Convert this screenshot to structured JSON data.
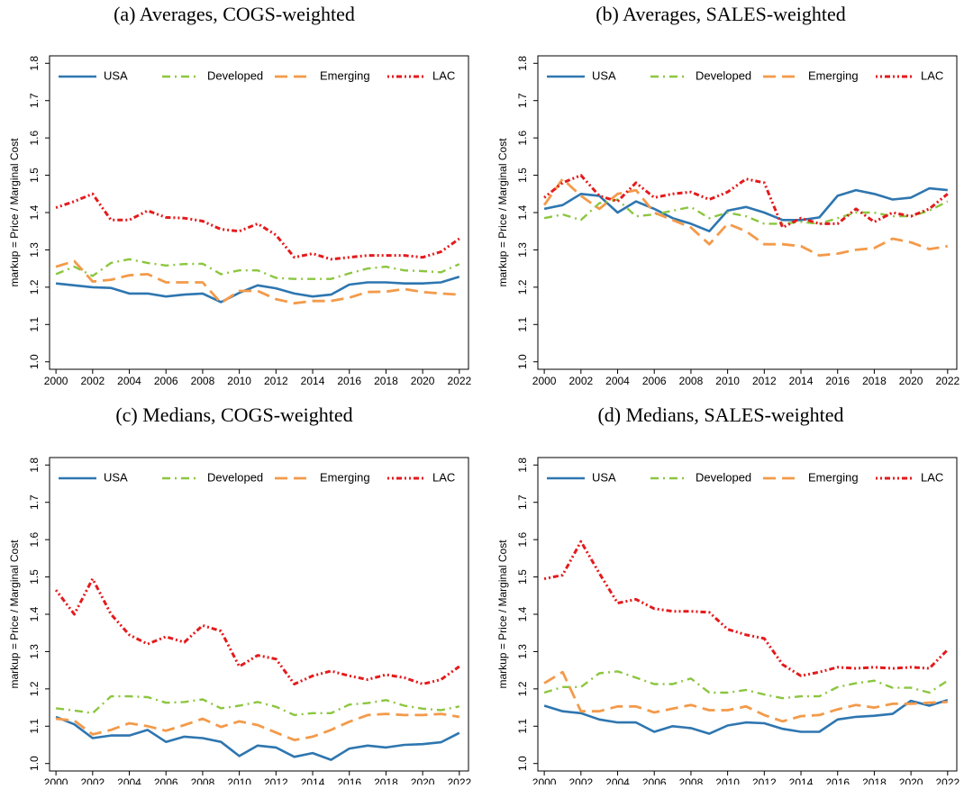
{
  "chart_data": [
    {
      "type": "line",
      "title": "(a) Averages, COGS-weighted",
      "y_label": "markup = Price / Marginal Cost",
      "x": [
        2000,
        2001,
        2002,
        2003,
        2004,
        2005,
        2006,
        2007,
        2008,
        2009,
        2010,
        2011,
        2012,
        2013,
        2014,
        2015,
        2016,
        2017,
        2018,
        2019,
        2020,
        2021,
        2022
      ],
      "xlim": [
        1999.65,
        2022.5
      ],
      "xticks": [
        2000,
        2002,
        2004,
        2006,
        2008,
        2010,
        2012,
        2014,
        2016,
        2018,
        2020,
        2022
      ],
      "ylim": [
        0.98,
        1.82
      ],
      "yticks": [
        {
          "value": 1,
          "label": "1.0"
        },
        1.1,
        1.2,
        1.3,
        1.4,
        1.5,
        1.6,
        1.7,
        1.8
      ],
      "legend": "top",
      "grid": false,
      "series": [
        {
          "name": "USA",
          "color": "#2e76b0",
          "values": [
            1.21,
            1.205,
            1.2,
            1.198,
            1.183,
            1.183,
            1.175,
            1.18,
            1.183,
            1.16,
            1.185,
            1.205,
            1.197,
            1.183,
            1.175,
            1.18,
            1.207,
            1.213,
            1.213,
            1.21,
            1.21,
            1.213,
            1.228
          ]
        },
        {
          "name": "Developed",
          "color": "#8cc63f",
          "values": [
            1.235,
            1.255,
            1.23,
            1.265,
            1.275,
            1.265,
            1.258,
            1.262,
            1.263,
            1.235,
            1.245,
            1.245,
            1.225,
            1.222,
            1.222,
            1.222,
            1.237,
            1.25,
            1.255,
            1.245,
            1.243,
            1.24,
            1.262
          ]
        },
        {
          "name": "Emerging",
          "color": "#f39a4a",
          "values": [
            1.255,
            1.27,
            1.215,
            1.22,
            1.232,
            1.235,
            1.213,
            1.213,
            1.213,
            1.158,
            1.19,
            1.19,
            1.168,
            1.157,
            1.163,
            1.163,
            1.172,
            1.187,
            1.188,
            1.195,
            1.187,
            1.183,
            1.18
          ]
        },
        {
          "name": "LAC",
          "color": "#e41a1c",
          "values": [
            1.413,
            1.43,
            1.45,
            1.38,
            1.38,
            1.405,
            1.387,
            1.385,
            1.377,
            1.355,
            1.35,
            1.37,
            1.34,
            1.28,
            1.29,
            1.275,
            1.28,
            1.285,
            1.285,
            1.285,
            1.28,
            1.295,
            1.33
          ]
        }
      ]
    },
    {
      "type": "line",
      "title": "(b) Averages, SALES-weighted",
      "y_label": "markup = Price / Marginal Cost",
      "x": [
        2000,
        2001,
        2002,
        2003,
        2004,
        2005,
        2006,
        2007,
        2008,
        2009,
        2010,
        2011,
        2012,
        2013,
        2014,
        2015,
        2016,
        2017,
        2018,
        2019,
        2020,
        2021,
        2022
      ],
      "xlim": [
        1999.65,
        2022.5
      ],
      "xticks": [
        2000,
        2002,
        2004,
        2006,
        2008,
        2010,
        2012,
        2014,
        2016,
        2018,
        2020,
        2022
      ],
      "ylim": [
        0.98,
        1.82
      ],
      "yticks": [
        {
          "value": 1,
          "label": "1.0"
        },
        1.1,
        1.2,
        1.3,
        1.4,
        1.5,
        1.6,
        1.7,
        1.8
      ],
      "legend": "top",
      "grid": false,
      "series": [
        {
          "name": "USA",
          "color": "#2e76b0",
          "values": [
            1.41,
            1.42,
            1.45,
            1.445,
            1.4,
            1.43,
            1.41,
            1.385,
            1.37,
            1.35,
            1.405,
            1.415,
            1.4,
            1.38,
            1.38,
            1.387,
            1.445,
            1.46,
            1.45,
            1.435,
            1.44,
            1.465,
            1.46
          ]
        },
        {
          "name": "Developed",
          "color": "#8cc63f",
          "values": [
            1.385,
            1.395,
            1.38,
            1.425,
            1.435,
            1.39,
            1.395,
            1.405,
            1.415,
            1.385,
            1.4,
            1.39,
            1.37,
            1.37,
            1.375,
            1.37,
            1.385,
            1.4,
            1.4,
            1.39,
            1.39,
            1.405,
            1.43
          ]
        },
        {
          "name": "Emerging",
          "color": "#f39a4a",
          "values": [
            1.42,
            1.49,
            1.445,
            1.41,
            1.45,
            1.46,
            1.4,
            1.38,
            1.36,
            1.315,
            1.37,
            1.35,
            1.315,
            1.315,
            1.31,
            1.285,
            1.29,
            1.3,
            1.305,
            1.33,
            1.32,
            1.302,
            1.31
          ]
        },
        {
          "name": "LAC",
          "color": "#e41a1c",
          "values": [
            1.44,
            1.48,
            1.5,
            1.445,
            1.43,
            1.48,
            1.44,
            1.45,
            1.455,
            1.435,
            1.455,
            1.49,
            1.48,
            1.36,
            1.385,
            1.37,
            1.37,
            1.41,
            1.375,
            1.4,
            1.39,
            1.41,
            1.45
          ]
        }
      ]
    },
    {
      "type": "line",
      "title": "(c) Medians, COGS-weighted",
      "y_label": "markup = Price / Marginal Cost",
      "x": [
        2000,
        2001,
        2002,
        2003,
        2004,
        2005,
        2006,
        2007,
        2008,
        2009,
        2010,
        2011,
        2012,
        2013,
        2014,
        2015,
        2016,
        2017,
        2018,
        2019,
        2020,
        2021,
        2022
      ],
      "xlim": [
        1999.65,
        2022.5
      ],
      "xticks": [
        2000,
        2002,
        2004,
        2006,
        2008,
        2010,
        2012,
        2014,
        2016,
        2018,
        2020,
        2022
      ],
      "ylim": [
        0.98,
        1.82
      ],
      "yticks": [
        {
          "value": 1,
          "label": "1.0"
        },
        1.1,
        1.2,
        1.3,
        1.4,
        1.5,
        1.6,
        1.7,
        1.8
      ],
      "legend": "top",
      "grid": false,
      "series": [
        {
          "name": "USA",
          "color": "#2e76b0",
          "values": [
            1.125,
            1.105,
            1.068,
            1.075,
            1.075,
            1.09,
            1.058,
            1.072,
            1.068,
            1.058,
            1.02,
            1.048,
            1.043,
            1.018,
            1.028,
            1.01,
            1.04,
            1.048,
            1.043,
            1.05,
            1.052,
            1.057,
            1.082
          ]
        },
        {
          "name": "Developed",
          "color": "#8cc63f",
          "values": [
            1.148,
            1.142,
            1.135,
            1.18,
            1.18,
            1.178,
            1.163,
            1.165,
            1.172,
            1.148,
            1.155,
            1.165,
            1.152,
            1.13,
            1.135,
            1.135,
            1.158,
            1.162,
            1.17,
            1.155,
            1.147,
            1.143,
            1.153
          ]
        },
        {
          "name": "Emerging",
          "color": "#f39a4a",
          "values": [
            1.12,
            1.115,
            1.078,
            1.09,
            1.108,
            1.1,
            1.088,
            1.103,
            1.12,
            1.098,
            1.113,
            1.103,
            1.083,
            1.063,
            1.072,
            1.09,
            1.112,
            1.13,
            1.133,
            1.13,
            1.13,
            1.133,
            1.125
          ]
        },
        {
          "name": "LAC",
          "color": "#e41a1c",
          "values": [
            1.465,
            1.4,
            1.495,
            1.4,
            1.345,
            1.32,
            1.34,
            1.325,
            1.37,
            1.355,
            1.26,
            1.29,
            1.28,
            1.213,
            1.235,
            1.248,
            1.235,
            1.225,
            1.238,
            1.23,
            1.213,
            1.225,
            1.26
          ]
        }
      ]
    },
    {
      "type": "line",
      "title": "(d) Medians, SALES-weighted",
      "y_label": "markup = Price / Marginal Cost",
      "x": [
        2000,
        2001,
        2002,
        2003,
        2004,
        2005,
        2006,
        2007,
        2008,
        2009,
        2010,
        2011,
        2012,
        2013,
        2014,
        2015,
        2016,
        2017,
        2018,
        2019,
        2020,
        2021,
        2022
      ],
      "xlim": [
        1999.65,
        2022.5
      ],
      "xticks": [
        2000,
        2002,
        2004,
        2006,
        2008,
        2010,
        2012,
        2014,
        2016,
        2018,
        2020,
        2022
      ],
      "ylim": [
        0.98,
        1.82
      ],
      "yticks": [
        {
          "value": 1,
          "label": "1.0"
        },
        1.1,
        1.2,
        1.3,
        1.4,
        1.5,
        1.6,
        1.7,
        1.8
      ],
      "legend": "top",
      "grid": false,
      "series": [
        {
          "name": "USA",
          "color": "#2e76b0",
          "values": [
            1.155,
            1.14,
            1.135,
            1.118,
            1.11,
            1.11,
            1.085,
            1.1,
            1.095,
            1.08,
            1.102,
            1.11,
            1.108,
            1.093,
            1.085,
            1.085,
            1.118,
            1.125,
            1.128,
            1.133,
            1.168,
            1.155,
            1.17
          ]
        },
        {
          "name": "Developed",
          "color": "#8cc63f",
          "values": [
            1.19,
            1.205,
            1.205,
            1.242,
            1.247,
            1.23,
            1.213,
            1.213,
            1.228,
            1.19,
            1.19,
            1.197,
            1.185,
            1.175,
            1.18,
            1.18,
            1.205,
            1.215,
            1.222,
            1.203,
            1.203,
            1.19,
            1.222
          ]
        },
        {
          "name": "Emerging",
          "color": "#f39a4a",
          "values": [
            1.215,
            1.245,
            1.14,
            1.14,
            1.153,
            1.153,
            1.137,
            1.147,
            1.157,
            1.143,
            1.143,
            1.153,
            1.13,
            1.113,
            1.127,
            1.13,
            1.145,
            1.157,
            1.15,
            1.16,
            1.16,
            1.163,
            1.165
          ]
        },
        {
          "name": "LAC",
          "color": "#e41a1c",
          "values": [
            1.495,
            1.505,
            1.595,
            1.51,
            1.43,
            1.44,
            1.415,
            1.408,
            1.408,
            1.405,
            1.36,
            1.345,
            1.335,
            1.265,
            1.235,
            1.245,
            1.258,
            1.255,
            1.258,
            1.255,
            1.258,
            1.255,
            1.305
          ]
        }
      ]
    }
  ]
}
